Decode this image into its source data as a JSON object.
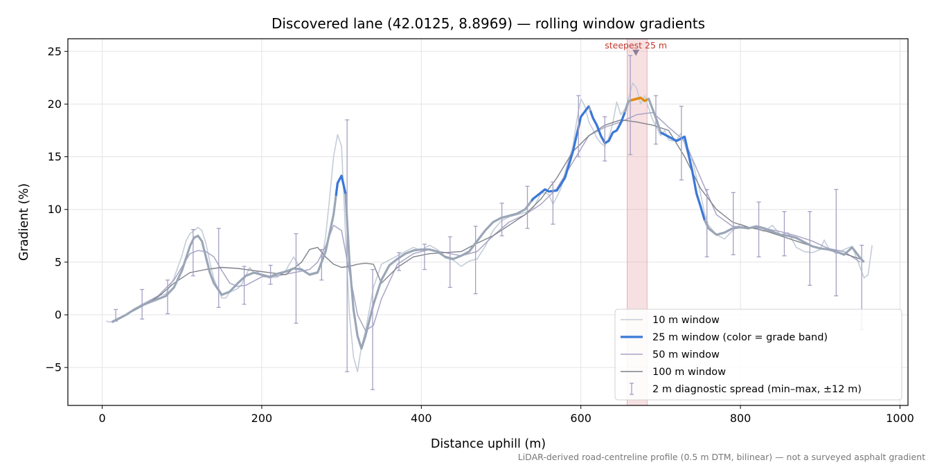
{
  "chart_data": {
    "type": "line",
    "title": "Discovered lane (42.0125, 8.8969) — rolling window gradients",
    "xlabel": "Distance uphill (m)",
    "ylabel": "Gradient (%)",
    "xlim": [
      -43,
      1010
    ],
    "ylim": [
      -8.6,
      26.2
    ],
    "xticks": [
      0,
      200,
      400,
      600,
      800,
      1000
    ],
    "yticks": [
      -5,
      0,
      5,
      10,
      15,
      20,
      25
    ],
    "grid": true,
    "legend_placement": "lower-right",
    "footnote": "LiDAR-derived road-centreline profile (0.5 m DTM, bilinear) — not a surveyed asphalt gradient",
    "annotation": {
      "text": "steepest 25 m",
      "x": 669,
      "y": 24.9,
      "band": [
        658,
        683
      ]
    },
    "colors": {
      "w10": "#c3ccd8",
      "w25_base": "#9aa6b6",
      "w25_blue": "#3a78d8",
      "w25_orange": "#e08c0a",
      "w50": "#a7a4c4",
      "w100": "#7d8189",
      "errorbar": "#a39fc2",
      "band": "#e8a7ad",
      "annot": "#c0392b"
    },
    "series": [
      {
        "name": "10 m window",
        "x": [
          5,
          10,
          20,
          30,
          40,
          50,
          60,
          70,
          80,
          90,
          100,
          105,
          110,
          115,
          120,
          125,
          130,
          135,
          140,
          145,
          150,
          155,
          160,
          165,
          170,
          175,
          180,
          185,
          190,
          195,
          200,
          210,
          220,
          230,
          240,
          250,
          260,
          270,
          275,
          280,
          285,
          290,
          295,
          300,
          303,
          306,
          310,
          315,
          320,
          325,
          330,
          335,
          340,
          345,
          350,
          360,
          370,
          380,
          390,
          400,
          410,
          420,
          430,
          440,
          450,
          460,
          470,
          480,
          490,
          500,
          510,
          520,
          530,
          540,
          550,
          555,
          560,
          565,
          570,
          575,
          580,
          590,
          595,
          600,
          605,
          610,
          615,
          620,
          625,
          630,
          635,
          640,
          645,
          650,
          655,
          660,
          665,
          670,
          675,
          680,
          685,
          690,
          695,
          700,
          705,
          710,
          715,
          720,
          725,
          730,
          735,
          740,
          745,
          750,
          755,
          760,
          770,
          780,
          790,
          800,
          810,
          820,
          830,
          840,
          850,
          860,
          870,
          880,
          890,
          900,
          905,
          910,
          920,
          930,
          940,
          950,
          955,
          960,
          965
        ],
        "y": [
          -0.6,
          -0.7,
          -0.3,
          0.0,
          0.5,
          1.0,
          1.4,
          1.8,
          2.0,
          3.5,
          5.6,
          7.0,
          7.7,
          8.0,
          8.3,
          8.0,
          6.8,
          5.0,
          3.4,
          2.5,
          1.6,
          1.6,
          2.2,
          2.3,
          2.5,
          2.9,
          3.7,
          4.5,
          4.0,
          4.1,
          3.7,
          3.5,
          3.6,
          4.2,
          5.5,
          4.2,
          3.9,
          4.1,
          5.0,
          7.4,
          11.0,
          15.0,
          17.1,
          16.0,
          11.0,
          6.0,
          0.0,
          -4.0,
          -5.4,
          -3.0,
          -1.5,
          0.5,
          2.6,
          3.7,
          4.8,
          5.2,
          5.6,
          6.0,
          6.4,
          6.1,
          6.6,
          6.2,
          5.4,
          5.2,
          4.6,
          5.1,
          5.3,
          6.5,
          8.0,
          8.9,
          9.3,
          9.5,
          9.7,
          10.1,
          11.5,
          11.6,
          11.4,
          10.5,
          11.2,
          12.0,
          13.5,
          16.0,
          18.5,
          20.5,
          19.8,
          18.3,
          17.6,
          16.8,
          16.3,
          16.0,
          16.8,
          18.2,
          20.2,
          19.0,
          19.5,
          20.6,
          22.0,
          21.5,
          20.0,
          20.8,
          19.6,
          18.5,
          17.8,
          17.0,
          17.5,
          16.6,
          16.5,
          16.6,
          17.2,
          16.2,
          15.0,
          14.6,
          13.0,
          11.5,
          9.6,
          8.5,
          7.6,
          7.2,
          8.0,
          8.6,
          8.3,
          8.2,
          7.9,
          8.5,
          7.6,
          7.8,
          6.4,
          6.0,
          5.9,
          6.2,
          7.1,
          6.4,
          5.8,
          6.2,
          6.5,
          4.5,
          3.5,
          3.8,
          6.6
        ]
      },
      {
        "name": "25 m window (color = grade band)",
        "x": [
          12,
          20,
          30,
          40,
          50,
          60,
          70,
          80,
          90,
          100,
          110,
          115,
          120,
          125,
          130,
          135,
          140,
          150,
          160,
          170,
          180,
          190,
          200,
          210,
          220,
          230,
          240,
          250,
          260,
          270,
          280,
          290,
          295,
          300,
          305,
          310,
          315,
          320,
          325,
          330,
          340,
          350,
          360,
          370,
          380,
          390,
          400,
          410,
          420,
          430,
          440,
          450,
          460,
          470,
          480,
          490,
          500,
          510,
          520,
          530,
          540,
          550,
          555,
          560,
          570,
          580,
          590,
          600,
          605,
          610,
          615,
          620,
          625,
          630,
          635,
          640,
          645,
          650,
          655,
          660,
          665,
          670,
          675,
          680,
          685,
          690,
          695,
          700,
          710,
          720,
          730,
          740,
          745,
          750,
          755,
          760,
          770,
          780,
          790,
          800,
          810,
          820,
          830,
          840,
          850,
          860,
          870,
          880,
          890,
          900,
          910,
          920,
          930,
          940,
          950,
          955
        ],
        "y": [
          -0.7,
          -0.4,
          0.0,
          0.5,
          0.9,
          1.2,
          1.5,
          1.8,
          2.6,
          4.2,
          6.5,
          7.3,
          7.5,
          7.0,
          5.5,
          4.0,
          3.0,
          1.9,
          2.2,
          3.0,
          3.7,
          4.0,
          3.8,
          3.6,
          3.9,
          4.1,
          4.4,
          4.3,
          3.8,
          4.0,
          6.0,
          9.5,
          12.5,
          13.2,
          11.5,
          5.0,
          0.5,
          -2.0,
          -3.2,
          -2.0,
          1.0,
          3.3,
          4.7,
          5.3,
          5.8,
          6.1,
          6.2,
          6.2,
          6.0,
          5.5,
          5.3,
          5.6,
          6.0,
          7.0,
          8.0,
          8.8,
          9.2,
          9.4,
          9.6,
          10.0,
          11.0,
          11.6,
          11.9,
          11.7,
          11.8,
          13.0,
          15.5,
          18.8,
          19.3,
          19.8,
          18.7,
          18.0,
          17.0,
          16.3,
          16.5,
          17.3,
          17.5,
          18.2,
          19.2,
          20.3,
          20.4,
          20.5,
          20.6,
          20.3,
          20.5,
          19.5,
          18.5,
          17.3,
          16.9,
          16.5,
          16.9,
          13.5,
          11.5,
          10.3,
          9.0,
          8.2,
          7.6,
          7.8,
          8.2,
          8.3,
          8.2,
          8.4,
          8.2,
          7.9,
          7.6,
          7.5,
          7.3,
          6.9,
          6.5,
          6.3,
          6.2,
          6.0,
          5.7,
          6.4,
          5.4,
          5.0
        ]
      },
      {
        "name": "50 m window",
        "x": [
          15,
          30,
          50,
          70,
          90,
          110,
          120,
          130,
          140,
          150,
          160,
          170,
          180,
          190,
          200,
          220,
          240,
          260,
          270,
          280,
          290,
          300,
          310,
          320,
          330,
          340,
          350,
          370,
          390,
          410,
          430,
          450,
          470,
          490,
          510,
          530,
          550,
          570,
          590,
          610,
          630,
          650,
          670,
          690,
          710,
          730,
          750,
          770,
          790,
          810,
          830,
          850,
          870,
          890,
          910,
          930,
          950
        ],
        "y": [
          -0.6,
          0.0,
          0.9,
          1.8,
          3.3,
          5.8,
          6.1,
          6.0,
          5.5,
          4.2,
          3.0,
          2.7,
          2.8,
          3.2,
          3.6,
          3.7,
          4.0,
          4.3,
          5.0,
          6.5,
          8.5,
          8.0,
          4.0,
          0.0,
          -1.5,
          -1.0,
          1.5,
          4.8,
          5.8,
          6.2,
          5.9,
          5.6,
          6.0,
          7.5,
          8.8,
          9.5,
          10.5,
          12.0,
          14.5,
          17.0,
          17.8,
          18.3,
          19.0,
          19.2,
          17.8,
          16.5,
          13.0,
          9.5,
          8.4,
          8.3,
          8.2,
          7.9,
          7.5,
          7.0,
          6.3,
          6.0,
          5.0
        ]
      },
      {
        "name": "100 m window",
        "x": [
          12,
          30,
          50,
          70,
          90,
          110,
          130,
          150,
          170,
          190,
          210,
          230,
          250,
          260,
          270,
          280,
          290,
          300,
          310,
          320,
          330,
          340,
          350,
          370,
          390,
          410,
          430,
          450,
          470,
          490,
          510,
          530,
          550,
          570,
          590,
          610,
          630,
          650,
          670,
          690,
          710,
          730,
          750,
          770,
          790,
          810,
          830,
          850,
          870,
          890,
          910,
          930,
          950
        ],
        "y": [
          -0.7,
          0.0,
          0.8,
          1.7,
          3.0,
          4.0,
          4.3,
          4.5,
          4.4,
          4.2,
          4.0,
          3.8,
          5.0,
          6.2,
          6.4,
          5.5,
          4.8,
          4.5,
          4.6,
          4.8,
          4.9,
          4.8,
          3.0,
          4.5,
          5.5,
          5.8,
          5.9,
          6.0,
          6.8,
          7.5,
          8.5,
          9.5,
          11.0,
          13.0,
          15.5,
          17.0,
          18.0,
          18.5,
          18.3,
          18.0,
          17.5,
          15.0,
          12.0,
          10.0,
          8.8,
          8.3,
          8.0,
          7.5,
          7.0,
          6.5,
          6.2,
          5.8,
          5.3
        ]
      }
    ],
    "highlight_25m": {
      "blue_segments": [
        [
          293,
          305
        ],
        [
          538,
          610
        ],
        [
          612,
          655
        ],
        [
          700,
          755
        ]
      ],
      "orange_segments": [
        [
          662,
          683
        ]
      ]
    },
    "diagnostic_spread": {
      "name": "2 m diagnostic spread (min–max, ±12 m)",
      "bars": [
        {
          "x": 17,
          "low": -0.6,
          "high": 0.5
        },
        {
          "x": 50,
          "low": -0.4,
          "high": 2.4
        },
        {
          "x": 82,
          "low": 0.1,
          "high": 3.3
        },
        {
          "x": 114,
          "low": 3.7,
          "high": 8.1
        },
        {
          "x": 146,
          "low": 0.7,
          "high": 8.2
        },
        {
          "x": 178,
          "low": 1.0,
          "high": 4.6
        },
        {
          "x": 211,
          "low": 2.9,
          "high": 4.7
        },
        {
          "x": 243,
          "low": -0.8,
          "high": 7.7
        },
        {
          "x": 275,
          "low": 3.3,
          "high": 6.2
        },
        {
          "x": 307,
          "low": -5.4,
          "high": 18.5
        },
        {
          "x": 339,
          "low": -7.1,
          "high": 4.3
        },
        {
          "x": 372,
          "low": 4.2,
          "high": 5.9
        },
        {
          "x": 404,
          "low": 4.3,
          "high": 6.7
        },
        {
          "x": 436,
          "low": 2.6,
          "high": 7.4
        },
        {
          "x": 468,
          "low": 2.0,
          "high": 8.4
        },
        {
          "x": 501,
          "low": 7.5,
          "high": 10.6
        },
        {
          "x": 533,
          "low": 8.2,
          "high": 12.2
        },
        {
          "x": 565,
          "low": 8.6,
          "high": 12.6
        },
        {
          "x": 597,
          "low": 15.0,
          "high": 20.8
        },
        {
          "x": 630,
          "low": 14.6,
          "high": 18.8
        },
        {
          "x": 662,
          "low": 15.2,
          "high": 24.6
        },
        {
          "x": 694,
          "low": 16.2,
          "high": 20.8
        },
        {
          "x": 726,
          "low": 12.8,
          "high": 19.8
        },
        {
          "x": 758,
          "low": 5.5,
          "high": 11.9
        },
        {
          "x": 791,
          "low": 5.7,
          "high": 11.6
        },
        {
          "x": 823,
          "low": 5.5,
          "high": 10.7
        },
        {
          "x": 855,
          "low": 5.6,
          "high": 9.8
        },
        {
          "x": 887,
          "low": 2.8,
          "high": 9.8
        },
        {
          "x": 920,
          "low": 1.8,
          "high": 11.9
        },
        {
          "x": 952,
          "low": -1.4,
          "high": 6.6
        }
      ]
    }
  }
}
